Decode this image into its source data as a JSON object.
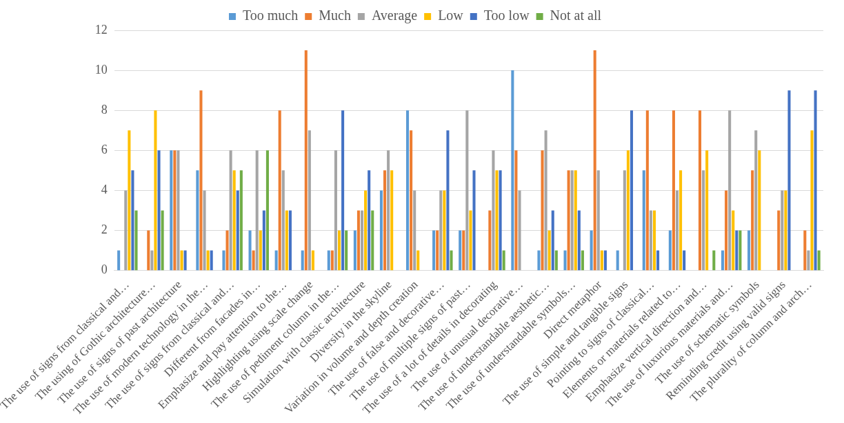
{
  "chart_data": {
    "type": "bar",
    "categories": [
      "The use of signs from classical and…",
      "The using of Gothic architecture…",
      "The use of signs of past architecture",
      "The use of modern technology in the…",
      "The use of signs from classical and…",
      "Different from facades in…",
      "Emphasize and pay attention to the…",
      "Highlighting using scale change",
      "The use of pediment column in the…",
      "Simulation with classic architecture",
      "Diversity in the skyline",
      "Variation in volume and depth creation",
      "The use of false and decorative…",
      "The use of multiple signs of past…",
      "The use of a lot of details in decorating",
      "The use of unusual decorative…",
      "The use of understandable aesthetic…",
      "The use of understandable symbols…",
      "Direct metaphor",
      "The use of simple and tangible signs",
      "Pointing to signs of classical…",
      "Elements or materials related to…",
      "Emphasize vertical direction and…",
      "The use of luxurious materials and…",
      "The use of schematic symbols",
      "Reminding credit using valid signs",
      "The plurality of column and arch…"
    ],
    "series": [
      {
        "name": "Too much",
        "color": "#5b9bd5",
        "values": [
          1,
          0,
          6,
          5,
          1,
          2,
          1,
          1,
          1,
          2,
          4,
          8,
          2,
          2,
          0,
          10,
          1,
          1,
          2,
          1,
          5,
          2,
          0,
          1,
          2,
          0,
          0
        ]
      },
      {
        "name": "Much",
        "color": "#ed7d31",
        "values": [
          0,
          2,
          6,
          9,
          2,
          1,
          8,
          11,
          1,
          3,
          5,
          7,
          2,
          2,
          3,
          6,
          6,
          5,
          11,
          0,
          8,
          8,
          8,
          4,
          5,
          3,
          2
        ]
      },
      {
        "name": "Average",
        "color": "#a5a5a5",
        "values": [
          4,
          1,
          6,
          4,
          6,
          6,
          5,
          7,
          6,
          3,
          6,
          4,
          4,
          8,
          6,
          4,
          7,
          5,
          5,
          5,
          3,
          4,
          5,
          8,
          7,
          4,
          1
        ]
      },
      {
        "name": "Low",
        "color": "#ffc000",
        "values": [
          7,
          8,
          1,
          1,
          5,
          2,
          3,
          1,
          2,
          4,
          5,
          1,
          4,
          3,
          5,
          0,
          2,
          5,
          1,
          6,
          3,
          5,
          6,
          3,
          6,
          4,
          7
        ]
      },
      {
        "name": "Too low",
        "color": "#4472c4",
        "values": [
          5,
          6,
          1,
          1,
          4,
          3,
          3,
          0,
          8,
          5,
          0,
          0,
          7,
          5,
          5,
          0,
          3,
          3,
          1,
          8,
          1,
          1,
          0,
          2,
          0,
          9,
          9
        ]
      },
      {
        "name": "Not at all",
        "color": "#70ad47",
        "values": [
          3,
          3,
          0,
          0,
          5,
          6,
          0,
          0,
          2,
          3,
          0,
          0,
          1,
          0,
          1,
          0,
          1,
          1,
          0,
          0,
          0,
          0,
          1,
          2,
          0,
          0,
          1
        ]
      }
    ],
    "ylim": [
      0,
      12
    ],
    "yticks": [
      0,
      2,
      4,
      6,
      8,
      10,
      12
    ],
    "grid": "y",
    "legend": "top"
  }
}
